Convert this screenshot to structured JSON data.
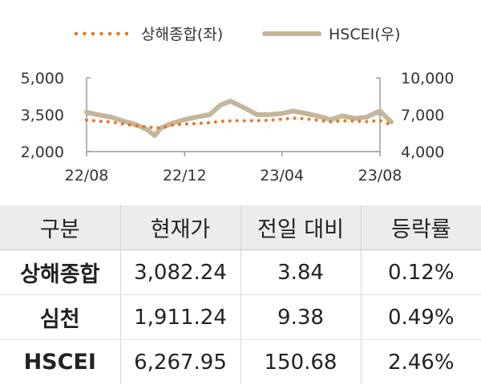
{
  "chart_data": {
    "type": "line",
    "legend_position": "top",
    "grid": false,
    "x_ticks": [
      "22/08",
      "22/12",
      "23/04",
      "23/08"
    ],
    "y_left": {
      "ticks": [
        "5,000",
        "3,500",
        "2,000"
      ],
      "ylim": [
        2000,
        5000
      ]
    },
    "y_right": {
      "ticks": [
        "10,000",
        "7,000",
        "4,000"
      ],
      "ylim": [
        4000,
        10000
      ]
    },
    "series": [
      {
        "name": "상해종합(좌)",
        "axis": "left",
        "style": "dotted",
        "color": "#e87722",
        "x": [
          "2022-08-01",
          "2022-08-15",
          "2022-09-01",
          "2022-09-15",
          "2022-10-01",
          "2022-10-15",
          "2022-11-01",
          "2022-11-15",
          "2022-12-01",
          "2022-12-15",
          "2023-01-01",
          "2023-01-15",
          "2023-02-01",
          "2023-02-15",
          "2023-03-01",
          "2023-03-15",
          "2023-04-01",
          "2023-04-15",
          "2023-05-01",
          "2023-05-15",
          "2023-06-01",
          "2023-06-15",
          "2023-07-01",
          "2023-07-15",
          "2023-08-01",
          "2023-08-15"
        ],
        "values": [
          3280,
          3240,
          3200,
          3120,
          3050,
          3000,
          2960,
          3070,
          3120,
          3140,
          3170,
          3230,
          3260,
          3250,
          3260,
          3270,
          3320,
          3360,
          3330,
          3280,
          3210,
          3250,
          3240,
          3220,
          3270,
          3080
        ]
      },
      {
        "name": "HSCEI(우)",
        "axis": "right",
        "style": "solid",
        "color": "#c4b69a",
        "x": [
          "2022-08-01",
          "2022-08-15",
          "2022-09-01",
          "2022-09-15",
          "2022-10-01",
          "2022-10-15",
          "2022-10-25",
          "2022-11-01",
          "2022-11-15",
          "2022-12-01",
          "2022-12-15",
          "2023-01-01",
          "2023-01-15",
          "2023-01-27",
          "2023-02-15",
          "2023-03-01",
          "2023-03-15",
          "2023-04-01",
          "2023-04-15",
          "2023-05-01",
          "2023-05-15",
          "2023-06-01",
          "2023-06-15",
          "2023-07-01",
          "2023-07-15",
          "2023-08-01",
          "2023-08-15"
        ],
        "values": [
          7200,
          7000,
          6800,
          6500,
          6200,
          5800,
          5300,
          5900,
          6300,
          6600,
          6800,
          7000,
          7800,
          8100,
          7500,
          7000,
          7000,
          7100,
          7300,
          7100,
          6900,
          6600,
          6900,
          6700,
          6800,
          7300,
          6400
        ]
      }
    ]
  },
  "table": {
    "headers": [
      "구분",
      "현재가",
      "전일 대비",
      "등락률"
    ],
    "rows": [
      {
        "name": "상해종합",
        "price": "3,082.24",
        "change": "3.84",
        "rate": "0.12%"
      },
      {
        "name": "심천",
        "price": "1,911.24",
        "change": "9.38",
        "rate": "0.49%"
      },
      {
        "name": "HSCEI",
        "price": "6,267.95",
        "change": "150.68",
        "rate": "2.46%"
      }
    ]
  }
}
